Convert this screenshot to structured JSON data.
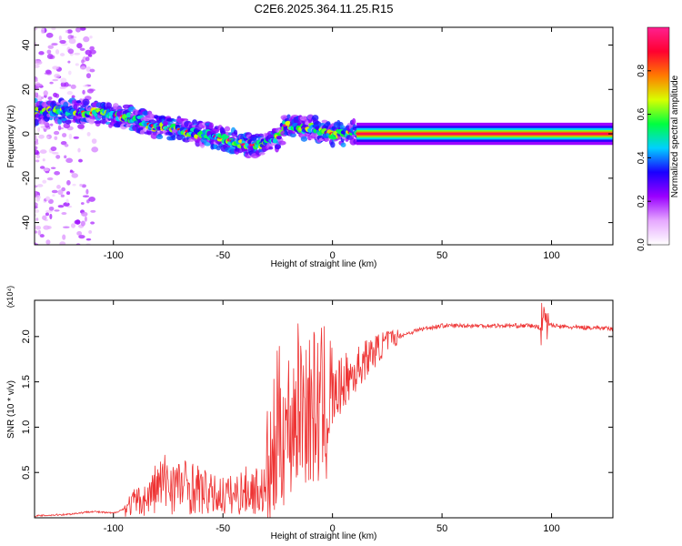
{
  "title": "C2E6.2025.364.11.25.R15",
  "chart_data": [
    {
      "type": "heatmap",
      "xlabel": "Height of straight line (km)",
      "ylabel": "Frequency (Hz)",
      "xlim": [
        -136,
        128
      ],
      "ylim": [
        -50,
        48
      ],
      "xticks": [
        -100,
        -50,
        0,
        50,
        100
      ],
      "yticks": [
        -40,
        -20,
        0,
        20,
        40
      ],
      "colorbar": {
        "label": "Normalized spectral amplitude",
        "range": [
          0,
          1
        ],
        "ticks": [
          0.0,
          0.2,
          0.4,
          0.6,
          0.8
        ],
        "tick_labels": [
          "0.0",
          "0.2",
          "0.4",
          "0.6",
          "0.8"
        ],
        "colors": [
          "#ffffff",
          "#e6a8ff",
          "#9a00ff",
          "#1a00ff",
          "#00d0ff",
          "#00ff40",
          "#d8ff00",
          "#ff7a00",
          "#ff0030",
          "#ff2090"
        ]
      },
      "ridge": {
        "x": [
          -135,
          -125,
          -115,
          -105,
          -95,
          -88,
          -80,
          -70,
          -60,
          -50,
          -40,
          -35,
          -30,
          -25,
          -22,
          -18,
          -14,
          -10,
          -5,
          0,
          5,
          10,
          12,
          20,
          40,
          60,
          80,
          95,
          100,
          128
        ],
        "y": [
          10,
          10,
          10,
          9,
          8,
          6,
          3,
          2,
          0,
          -2,
          -5,
          -5,
          -4,
          -2,
          4,
          3,
          2,
          3,
          1,
          0,
          0,
          1,
          0,
          0,
          0,
          0,
          0,
          0,
          0,
          0
        ]
      }
    },
    {
      "type": "line",
      "xlabel": "Height of straight line (km)",
      "ylabel": "SNR (10 * v/v)",
      "multiplier": "(x10⁴)",
      "xlim": [
        -136,
        128
      ],
      "ylim": [
        0,
        2.4
      ],
      "xticks": [
        -100,
        -50,
        0,
        50,
        100
      ],
      "yticks": [
        0.5,
        1.0,
        1.5,
        2.0
      ],
      "ytick_labels": [
        "0.5",
        "1.0",
        "1.5",
        "2.0"
      ],
      "color": "#ee3333",
      "series": [
        {
          "name": "SNR",
          "x": [
            -136,
            -120,
            -110,
            -100,
            -95,
            -90,
            -85,
            -80,
            -75,
            -70,
            -65,
            -60,
            -55,
            -50,
            -45,
            -40,
            -35,
            -30,
            -27,
            -25,
            -20,
            -15,
            -10,
            -5,
            0,
            5,
            10,
            15,
            20,
            25,
            30,
            40,
            50,
            60,
            70,
            80,
            90,
            95,
            97,
            100,
            110,
            120,
            128
          ],
          "y": [
            0.02,
            0.04,
            0.07,
            0.05,
            0.1,
            0.18,
            0.2,
            0.35,
            0.4,
            0.35,
            0.35,
            0.3,
            0.25,
            0.25,
            0.25,
            0.3,
            0.3,
            0.3,
            0.6,
            1.0,
            1.0,
            1.3,
            1.2,
            1.2,
            1.3,
            1.5,
            1.6,
            1.75,
            1.85,
            1.95,
            2.0,
            2.08,
            2.12,
            2.12,
            2.12,
            2.12,
            2.12,
            2.1,
            2.2,
            2.12,
            2.1,
            2.1,
            2.08
          ]
        }
      ]
    }
  ]
}
